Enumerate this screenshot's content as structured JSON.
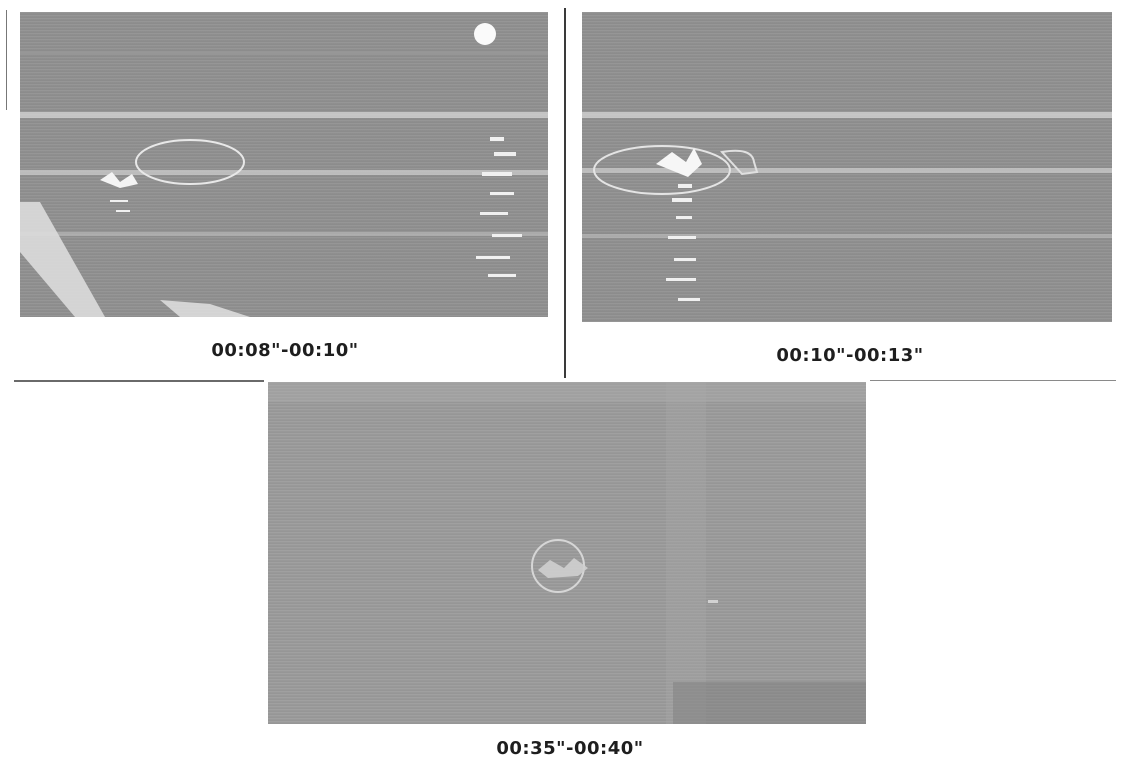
{
  "figure": {
    "panels": [
      {
        "caption": "00:08\"-00:10\""
      },
      {
        "caption": "00:10\"-00:13\""
      },
      {
        "caption": "00:35\"-00:40\""
      }
    ]
  }
}
